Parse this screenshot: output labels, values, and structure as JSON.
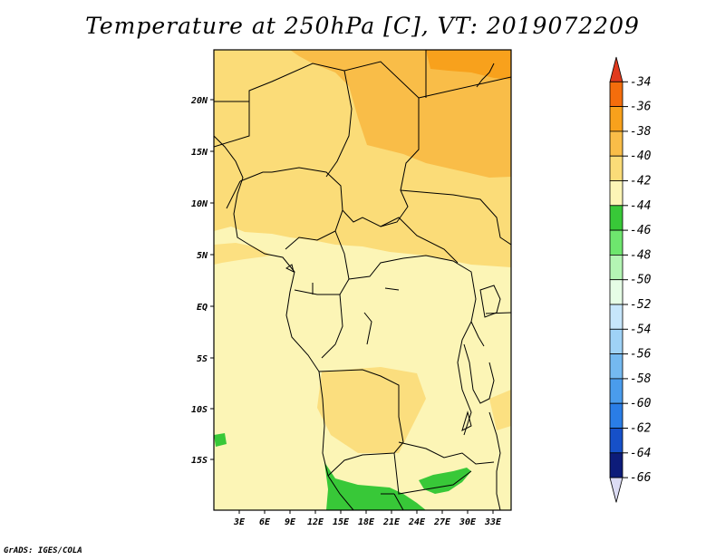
{
  "title": "Temperature at 250hPa [C], VT: 2019072209",
  "credit": "GrADS: IGES/COLA",
  "map": {
    "lon_labels": [
      "3E",
      "6E",
      "9E",
      "12E",
      "15E",
      "18E",
      "21E",
      "24E",
      "27E",
      "30E",
      "33E"
    ],
    "lat_labels": [
      "20N",
      "15N",
      "10N",
      "5N",
      "EQ",
      "5S",
      "10S",
      "15S"
    ]
  },
  "colorbar": {
    "labels": [
      "-34",
      "-36",
      "-38",
      "-40",
      "-42",
      "-44",
      "-46",
      "-48",
      "-50",
      "-52",
      "-54",
      "-56",
      "-58",
      "-60",
      "-62",
      "-64",
      "-66"
    ],
    "colors": [
      "#e03a1e",
      "#f46d0c",
      "#f8a11c",
      "#f9bd48",
      "#fbdc78",
      "#fcf5b6",
      "#38c838",
      "#6ee66e",
      "#b4f5b4",
      "#e6fde6",
      "#c6e6fb",
      "#9fd2f6",
      "#74b9f0",
      "#4a9cec",
      "#2a7de6",
      "#1650c8",
      "#0d1c7a",
      "#dcdcf4"
    ]
  }
}
